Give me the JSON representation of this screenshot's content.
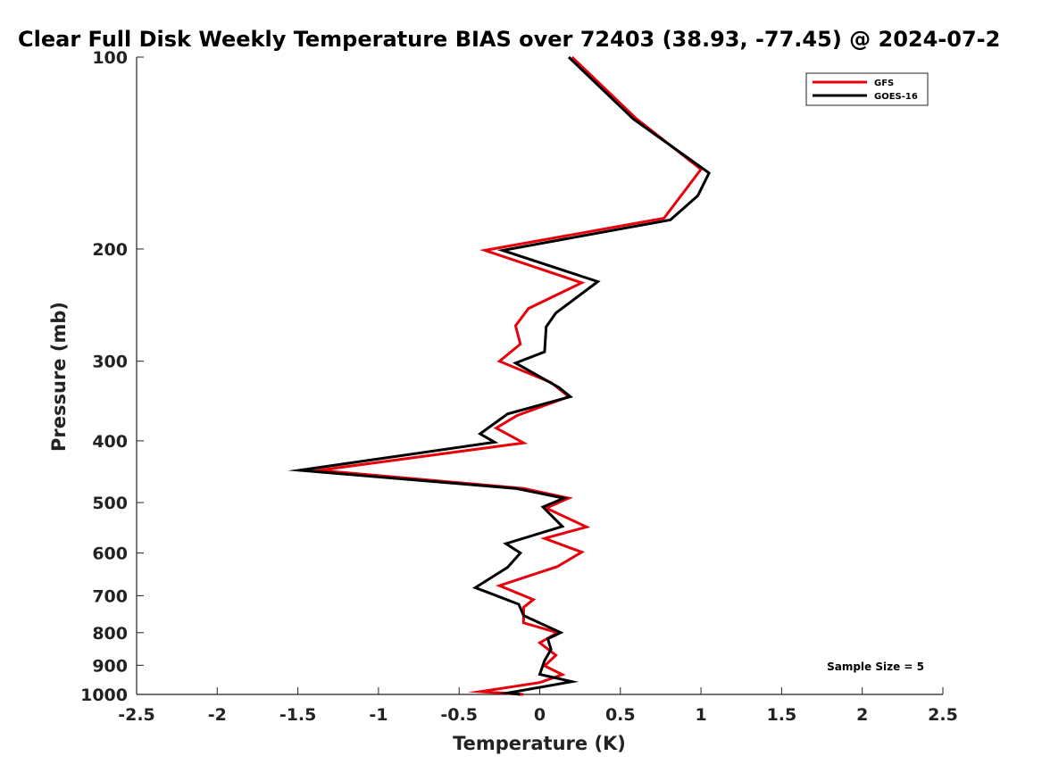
{
  "chart_data": {
    "type": "line",
    "title": "Clear Full Disk Weekly Temperature BIAS over 72403 (38.93, -77.45) @ 2024-07-2",
    "xlabel": "Temperature (K)",
    "ylabel": "Pressure (mb)",
    "xlim": [
      -2.5,
      2.5
    ],
    "ylim": [
      1000,
      100
    ],
    "y_scale": "log",
    "y_reversed": true,
    "x_ticks": [
      -2.5,
      -2,
      -1.5,
      -1,
      -0.5,
      0,
      0.5,
      1,
      1.5,
      2,
      2.5
    ],
    "x_tick_labels": [
      "-2.5",
      "-2",
      "-1.5",
      "-1",
      "-0.5",
      "0",
      "0.5",
      "1",
      "1.5",
      "2",
      "2.5"
    ],
    "y_ticks": [
      100,
      200,
      300,
      400,
      500,
      600,
      700,
      800,
      900,
      1000
    ],
    "y_tick_labels": [
      "100",
      "200",
      "300",
      "400",
      "500",
      "600",
      "700",
      "800",
      "900",
      "1000"
    ],
    "grid": false,
    "legend_position": "top-right",
    "annotation": "Sample Size = 5",
    "series": [
      {
        "name": "GFS",
        "color": "#e8000b",
        "points": [
          [
            0.2,
            100
          ],
          [
            0.6,
            125
          ],
          [
            1.0,
            150
          ],
          [
            0.9,
            162
          ],
          [
            0.77,
            179
          ],
          [
            -0.34,
            201
          ],
          [
            0.26,
            226
          ],
          [
            -0.07,
            248
          ],
          [
            -0.15,
            264
          ],
          [
            -0.12,
            282
          ],
          [
            -0.25,
            300
          ],
          [
            0.07,
            324
          ],
          [
            0.18,
            341
          ],
          [
            -0.14,
            365
          ],
          [
            -0.27,
            382
          ],
          [
            -0.1,
            403
          ],
          [
            -1.37,
            445
          ],
          [
            -0.1,
            475
          ],
          [
            0.18,
            492
          ],
          [
            0.04,
            510
          ],
          [
            0.29,
            546
          ],
          [
            0.03,
            569
          ],
          [
            0.26,
            598
          ],
          [
            0.11,
            630
          ],
          [
            -0.25,
            675
          ],
          [
            -0.04,
            710
          ],
          [
            -0.1,
            730
          ],
          [
            -0.1,
            772
          ],
          [
            0.11,
            800
          ],
          [
            0.0,
            830
          ],
          [
            0.1,
            868
          ],
          [
            0.03,
            902
          ],
          [
            0.14,
            931
          ],
          [
            0.0,
            958
          ],
          [
            -0.37,
            990
          ],
          [
            -0.1,
            1000
          ]
        ]
      },
      {
        "name": "GOES-16",
        "color": "#000000",
        "points": [
          [
            0.18,
            100
          ],
          [
            0.58,
            125
          ],
          [
            1.05,
            152
          ],
          [
            0.98,
            165
          ],
          [
            0.81,
            180
          ],
          [
            -0.23,
            201
          ],
          [
            0.36,
            225
          ],
          [
            0.1,
            252
          ],
          [
            0.04,
            265
          ],
          [
            0.03,
            290
          ],
          [
            -0.15,
            302
          ],
          [
            0.12,
            330
          ],
          [
            0.19,
            341
          ],
          [
            -0.2,
            363
          ],
          [
            -0.37,
            390
          ],
          [
            -0.28,
            402
          ],
          [
            -1.49,
            445
          ],
          [
            -0.15,
            475
          ],
          [
            0.15,
            492
          ],
          [
            0.02,
            508
          ],
          [
            0.14,
            545
          ],
          [
            -0.21,
            580
          ],
          [
            -0.12,
            600
          ],
          [
            -0.2,
            632
          ],
          [
            -0.4,
            680
          ],
          [
            -0.3,
            695
          ],
          [
            -0.13,
            722
          ],
          [
            -0.1,
            752
          ],
          [
            0.13,
            800
          ],
          [
            0.05,
            818
          ],
          [
            0.07,
            850
          ],
          [
            0.03,
            885
          ],
          [
            0.0,
            930
          ],
          [
            0.2,
            955
          ],
          [
            -0.2,
            995
          ],
          [
            -0.12,
            1000
          ]
        ]
      }
    ]
  }
}
